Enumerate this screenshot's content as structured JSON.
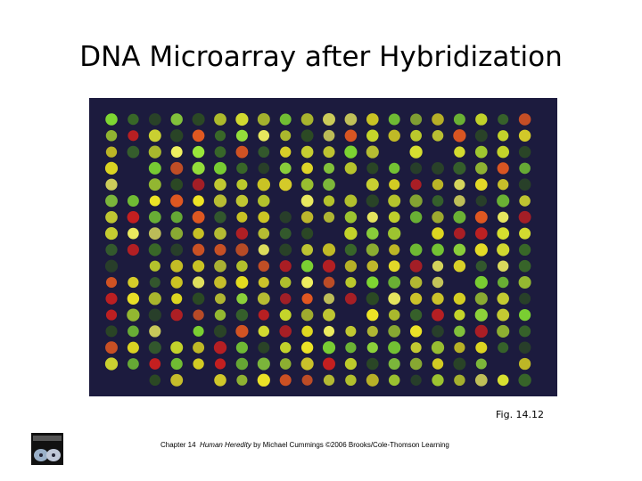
{
  "header": {
    "title": "DNA Microarray after Hybridization"
  },
  "figure": {
    "caption": "Fig. 14.12"
  },
  "footer": {
    "chapter": "Chapter 14",
    "book": "Human Heredity",
    "credit": "by Michael Cummings ©2006 Brooks/Cole-Thomson Learning"
  }
}
